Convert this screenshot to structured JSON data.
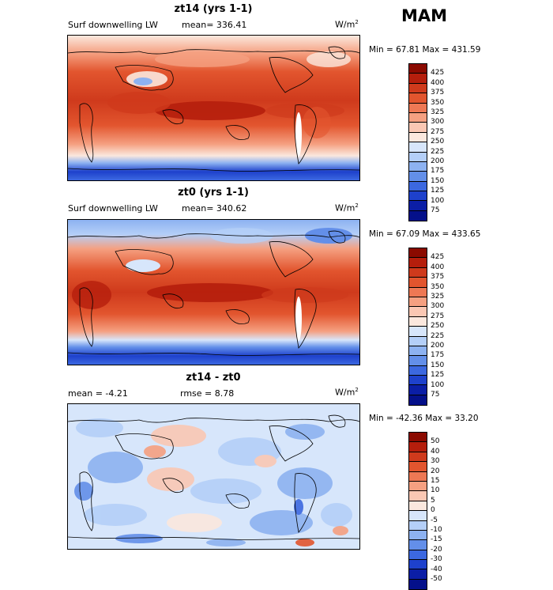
{
  "season": "MAM",
  "panels": [
    {
      "title": "zt14 (yrs 1-1)",
      "variable": "Surf downwelling LW",
      "mean_label": "mean=",
      "mean_value": "336.41",
      "units": "W/m",
      "units_exp": "2",
      "minmax": "Min =  67.81 Max = 431.59",
      "levels": [
        "425",
        "400",
        "375",
        "350",
        "325",
        "300",
        "275",
        "250",
        "225",
        "200",
        "175",
        "150",
        "125",
        "100",
        "75"
      ],
      "colors": [
        "#8b0a00",
        "#b51e0c",
        "#cf3a1c",
        "#e2552e",
        "#ee7854",
        "#f5a081",
        "#fac7b3",
        "#fbe8de",
        "#d7e6fb",
        "#b4cff8",
        "#8db2f1",
        "#638fe9",
        "#3c68e0",
        "#1e41cc",
        "#0b1ea6",
        "#04108a"
      ]
    },
    {
      "title": "zt0 (yrs 1-1)",
      "variable": "Surf downwelling LW",
      "mean_label": "mean=",
      "mean_value": "340.62",
      "units": "W/m",
      "units_exp": "2",
      "minmax": "Min =  67.09 Max = 433.65",
      "levels": [
        "425",
        "400",
        "375",
        "350",
        "325",
        "300",
        "275",
        "250",
        "225",
        "200",
        "175",
        "150",
        "125",
        "100",
        "75"
      ],
      "colors": [
        "#8b0a00",
        "#b51e0c",
        "#cf3a1c",
        "#e2552e",
        "#ee7854",
        "#f5a081",
        "#fac7b3",
        "#fbe8de",
        "#d7e6fb",
        "#b4cff8",
        "#8db2f1",
        "#638fe9",
        "#3c68e0",
        "#1e41cc",
        "#0b1ea6",
        "#04108a"
      ]
    },
    {
      "title": "zt14 - zt0",
      "mean_label": "mean =",
      "mean_value": "-4.21",
      "rmse_label": "rmse =",
      "rmse_value": "8.78",
      "units": "W/m",
      "units_exp": "2",
      "minmax": "Min = -42.36 Max =  33.20",
      "levels": [
        "50",
        "40",
        "30",
        "20",
        "15",
        "10",
        "5",
        "0",
        "-5",
        "-10",
        "-15",
        "-20",
        "-30",
        "-40",
        "-50"
      ],
      "colors": [
        "#8b0a00",
        "#b51e0c",
        "#cf3a1c",
        "#e2552e",
        "#ee7854",
        "#f5a081",
        "#fac7b3",
        "#fbe8de",
        "#d7e6fb",
        "#b4cff8",
        "#8db2f1",
        "#638fe9",
        "#3c68e0",
        "#1e41cc",
        "#0b1ea6",
        "#04108a"
      ]
    }
  ]
}
